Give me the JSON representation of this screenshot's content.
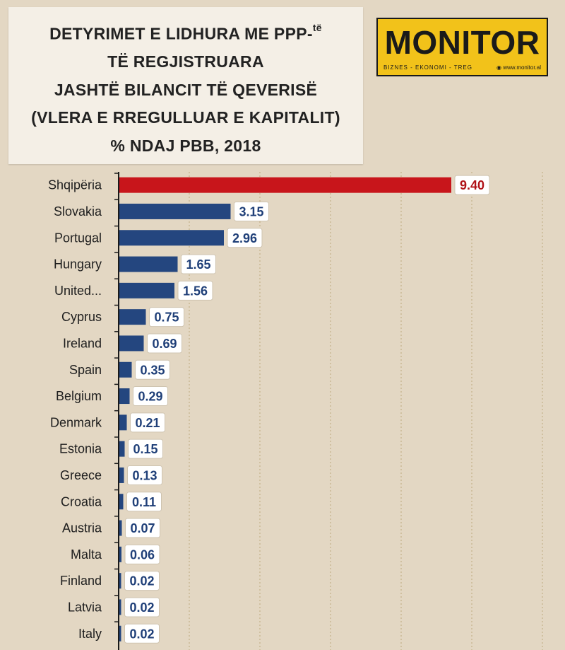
{
  "title": {
    "line1": "DETYRIMET E LIDHURA ME  PPP-",
    "line1_sup": "të",
    "line2": "TË REGJISTRUARA",
    "line3": "JASHTË BILANCIT TË QEVERISË",
    "line4": "(VLERA E RREGULLUAR E KAPITALIT)",
    "line5": "% NDAJ PBB, 2018"
  },
  "logo": {
    "name": "MONITOR",
    "tagline": "BIZNES  -  EKONOMI  -  TREG",
    "website": "◉ www.monitor.al"
  },
  "colors": {
    "highlight_bar": "#c8151b",
    "bar": "#24467f",
    "label_text_highlight": "#b01217",
    "label_text": "#1f3f78",
    "gridline": "#c9b995"
  },
  "chart_data": {
    "type": "bar",
    "orientation": "horizontal",
    "categories": [
      "Shqipëria",
      "Slovakia",
      "Portugal",
      "Hungary",
      "United...",
      "Cyprus",
      "Ireland",
      "Spain",
      "Belgium",
      "Denmark",
      "Estonia",
      "Greece",
      "Croatia",
      "Austria",
      "Malta",
      "Finland",
      "Latvia",
      "Italy"
    ],
    "values": [
      9.4,
      3.15,
      2.96,
      1.65,
      1.56,
      0.75,
      0.69,
      0.35,
      0.29,
      0.21,
      0.15,
      0.13,
      0.11,
      0.07,
      0.06,
      0.02,
      0.02,
      0.02
    ],
    "value_labels": [
      "9.40",
      "3.15",
      "2.96",
      "1.65",
      "1.56",
      "0.75",
      "0.69",
      "0.35",
      "0.29",
      "0.21",
      "0.15",
      "0.13",
      "0.11",
      "0.07",
      "0.06",
      "0.02",
      "0.02",
      "0.02"
    ],
    "highlight_index": 0,
    "xlim": [
      0,
      12
    ],
    "grid": true,
    "legend": "none"
  }
}
